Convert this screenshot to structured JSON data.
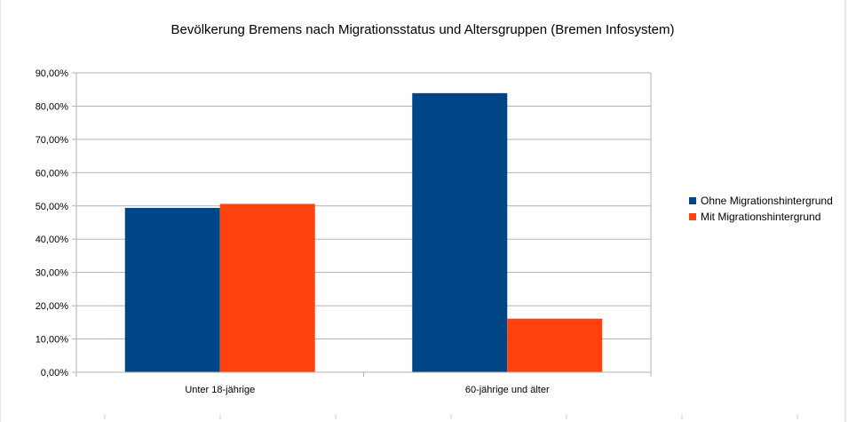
{
  "chart_data": {
    "type": "bar",
    "title": "Bevölkerung Bremens nach Migrationsstatus und Altersgruppen (Bremen Infosystem)",
    "categories": [
      "Unter 18-jährige",
      "60-jährige und älter"
    ],
    "series": [
      {
        "name": "Ohne Migrationshintergrund",
        "color": "#004586",
        "values": [
          49.4,
          83.9
        ]
      },
      {
        "name": "Mit Migrationshintergrund",
        "color": "#ff420e",
        "values": [
          50.6,
          16.1
        ]
      }
    ],
    "ylim": [
      0,
      90
    ],
    "yticks": [
      0,
      10,
      20,
      30,
      40,
      50,
      60,
      70,
      80,
      90
    ],
    "ytick_labels": [
      "0,00%",
      "10,00%",
      "20,00%",
      "30,00%",
      "40,00%",
      "50,00%",
      "60,00%",
      "70,00%",
      "80,00%",
      "90,00%"
    ],
    "xlabel": "",
    "ylabel": "",
    "grid": true,
    "legend_position": "right"
  }
}
